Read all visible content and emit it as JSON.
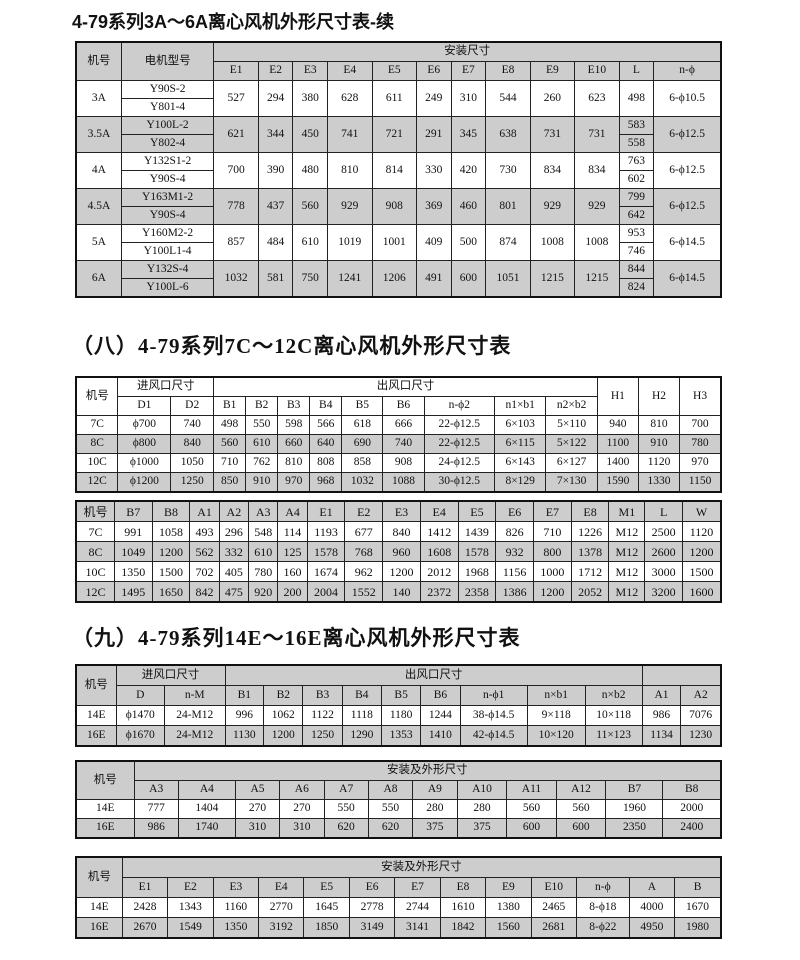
{
  "titles": {
    "t1": "4-79系列3A～6A离心风机外形尺寸表-续",
    "t2": "（八）4-79系列7C～12C离心风机外形尺寸表",
    "t3": "（九）4-79系列14E～16E离心风机外形尺寸表"
  },
  "colors": {
    "row_shade": "#cdcdcd",
    "border": "#111111"
  },
  "table1": {
    "head_no": "机号",
    "head_motor": "电机型号",
    "group": "安装尺寸",
    "columns": [
      "E1",
      "E2",
      "E3",
      "E4",
      "E5",
      "E6",
      "E7",
      "E8",
      "E9",
      "E10",
      "L",
      "n-ϕ"
    ],
    "rows": [
      {
        "no": "3A",
        "motors": [
          "Y90S-2",
          "Y801-4"
        ],
        "e": [
          "527",
          "294",
          "380",
          "628",
          "611",
          "249",
          "310",
          "544",
          "260",
          "623"
        ],
        "L": [
          "498"
        ],
        "nphi": "6-ϕ10.5"
      },
      {
        "no": "3.5A",
        "motors": [
          "Y100L-2",
          "Y802-4"
        ],
        "e": [
          "621",
          "344",
          "450",
          "741",
          "721",
          "291",
          "345",
          "638",
          "731",
          "731"
        ],
        "L": [
          "583",
          "558"
        ],
        "nphi": "6-ϕ12.5"
      },
      {
        "no": "4A",
        "motors": [
          "Y132S1-2",
          "Y90S-4"
        ],
        "e": [
          "700",
          "390",
          "480",
          "810",
          "814",
          "330",
          "420",
          "730",
          "834",
          "834"
        ],
        "L": [
          "763",
          "602"
        ],
        "nphi": "6-ϕ12.5"
      },
      {
        "no": "4.5A",
        "motors": [
          "Y163M1-2",
          "Y90S-4"
        ],
        "e": [
          "778",
          "437",
          "560",
          "929",
          "908",
          "369",
          "460",
          "801",
          "929",
          "929"
        ],
        "L": [
          "799",
          "642"
        ],
        "nphi": "6-ϕ12.5"
      },
      {
        "no": "5A",
        "motors": [
          "Y160M2-2",
          "Y100L1-4"
        ],
        "e": [
          "857",
          "484",
          "610",
          "1019",
          "1001",
          "409",
          "500",
          "874",
          "1008",
          "1008"
        ],
        "L": [
          "953",
          "746"
        ],
        "nphi": "6-ϕ14.5"
      },
      {
        "no": "6A",
        "motors": [
          "Y132S-4",
          "Y100L-6"
        ],
        "e": [
          "1032",
          "581",
          "750",
          "1241",
          "1206",
          "491",
          "600",
          "1051",
          "1215",
          "1215"
        ],
        "L": [
          "844",
          "824"
        ],
        "nphi": "6-ϕ14.5"
      }
    ]
  },
  "table2": {
    "groups": [
      {
        "label": "机号"
      },
      {
        "label": "进风口尺寸",
        "cols": [
          "D1",
          "D2"
        ]
      },
      {
        "label": "出风口尺寸",
        "cols": [
          "B1",
          "B2",
          "B3",
          "B4",
          "B5",
          "B6",
          "n-ϕ2",
          "n1×b1",
          "n2×b2"
        ]
      },
      {
        "label": "H1"
      },
      {
        "label": "H2"
      },
      {
        "label": "H3"
      }
    ],
    "rows": [
      [
        "7C",
        "ϕ700",
        "740",
        "498",
        "550",
        "598",
        "566",
        "618",
        "666",
        "22-ϕ12.5",
        "6×103",
        "5×110",
        "940",
        "810",
        "700"
      ],
      [
        "8C",
        "ϕ800",
        "840",
        "560",
        "610",
        "660",
        "640",
        "690",
        "740",
        "22-ϕ12.5",
        "6×115",
        "5×122",
        "1100",
        "910",
        "780"
      ],
      [
        "10C",
        "ϕ1000",
        "1050",
        "710",
        "762",
        "810",
        "808",
        "858",
        "908",
        "24-ϕ12.5",
        "6×143",
        "6×127",
        "1400",
        "1120",
        "970"
      ],
      [
        "12C",
        "ϕ1200",
        "1250",
        "850",
        "910",
        "970",
        "968",
        "1032",
        "1088",
        "30-ϕ12.5",
        "8×129",
        "7×130",
        "1590",
        "1330",
        "1150"
      ]
    ]
  },
  "table3": {
    "groups": [
      {
        "label": "机号"
      },
      {
        "label": "B7"
      },
      {
        "label": "B8"
      },
      {
        "label": "A1"
      },
      {
        "label": "A2"
      },
      {
        "label": "A3"
      },
      {
        "label": "A4"
      },
      {
        "label": "E1"
      },
      {
        "label": "E2"
      },
      {
        "label": "E3"
      },
      {
        "label": "E4"
      },
      {
        "label": "E5"
      },
      {
        "label": "E6"
      },
      {
        "label": "E7"
      },
      {
        "label": "E8"
      },
      {
        "label": "M1"
      },
      {
        "label": "L"
      },
      {
        "label": "W"
      }
    ],
    "rows": [
      [
        "7C",
        "991",
        "1058",
        "493",
        "296",
        "548",
        "114",
        "1193",
        "677",
        "840",
        "1412",
        "1439",
        "826",
        "710",
        "1226",
        "M12",
        "2500",
        "1120"
      ],
      [
        "8C",
        "1049",
        "1200",
        "562",
        "332",
        "610",
        "125",
        "1578",
        "768",
        "960",
        "1608",
        "1578",
        "932",
        "800",
        "1378",
        "M12",
        "2600",
        "1200"
      ],
      [
        "10C",
        "1350",
        "1500",
        "702",
        "405",
        "780",
        "160",
        "1674",
        "962",
        "1200",
        "2012",
        "1968",
        "1156",
        "1000",
        "1712",
        "M12",
        "3000",
        "1500"
      ],
      [
        "12C",
        "1495",
        "1650",
        "842",
        "475",
        "920",
        "200",
        "2004",
        "1552",
        "140",
        "2372",
        "2358",
        "1386",
        "1200",
        "2052",
        "M12",
        "3200",
        "1600"
      ]
    ]
  },
  "table4": {
    "groups": [
      {
        "label": "机号"
      },
      {
        "label": "进风口尺寸",
        "cols": [
          "D",
          "n-M"
        ]
      },
      {
        "label": "出风口尺寸",
        "cols": [
          "B1",
          "B2",
          "B3",
          "B4",
          "B5",
          "B6",
          "n-ϕ1",
          "n×b1",
          "n×b2"
        ]
      },
      {
        "label": "",
        "cols": [
          "A1",
          "A2"
        ]
      }
    ],
    "rows": [
      [
        "14E",
        "ϕ1470",
        "24-M12",
        "996",
        "1062",
        "1122",
        "1118",
        "1180",
        "1244",
        "38-ϕ14.5",
        "9×118",
        "10×118",
        "986",
        "7076"
      ],
      [
        "16E",
        "ϕ1670",
        "24-M12",
        "1130",
        "1200",
        "1250",
        "1290",
        "1353",
        "1410",
        "42-ϕ14.5",
        "10×120",
        "11×123",
        "1134",
        "1230"
      ]
    ]
  },
  "table5": {
    "groups": [
      {
        "label": "机号"
      },
      {
        "label": "安装及外形尺寸",
        "cols": [
          "A3",
          "A4",
          "A5",
          "A6",
          "A7",
          "A8",
          "A9",
          "A10",
          "A11",
          "A12",
          "B7",
          "B8"
        ]
      }
    ],
    "rows": [
      [
        "14E",
        "777",
        "1404",
        "270",
        "270",
        "550",
        "550",
        "280",
        "280",
        "560",
        "560",
        "1960",
        "2000"
      ],
      [
        "16E",
        "986",
        "1740",
        "310",
        "310",
        "620",
        "620",
        "375",
        "375",
        "600",
        "600",
        "2350",
        "2400"
      ]
    ]
  },
  "table6": {
    "groups": [
      {
        "label": "机号"
      },
      {
        "label": "安装及外形尺寸",
        "cols": [
          "E1",
          "E2",
          "E3",
          "E4",
          "E5",
          "E6",
          "E7",
          "E8",
          "E9",
          "E10",
          "n-ϕ",
          "A",
          "B"
        ]
      }
    ],
    "rows": [
      [
        "14E",
        "2428",
        "1343",
        "1160",
        "2770",
        "1645",
        "2778",
        "2744",
        "1610",
        "1380",
        "2465",
        "8-ϕ18",
        "4000",
        "1670"
      ],
      [
        "16E",
        "2670",
        "1549",
        "1350",
        "3192",
        "1850",
        "3149",
        "3141",
        "1842",
        "1560",
        "2681",
        "8-ϕ22",
        "4950",
        "1980"
      ]
    ]
  }
}
